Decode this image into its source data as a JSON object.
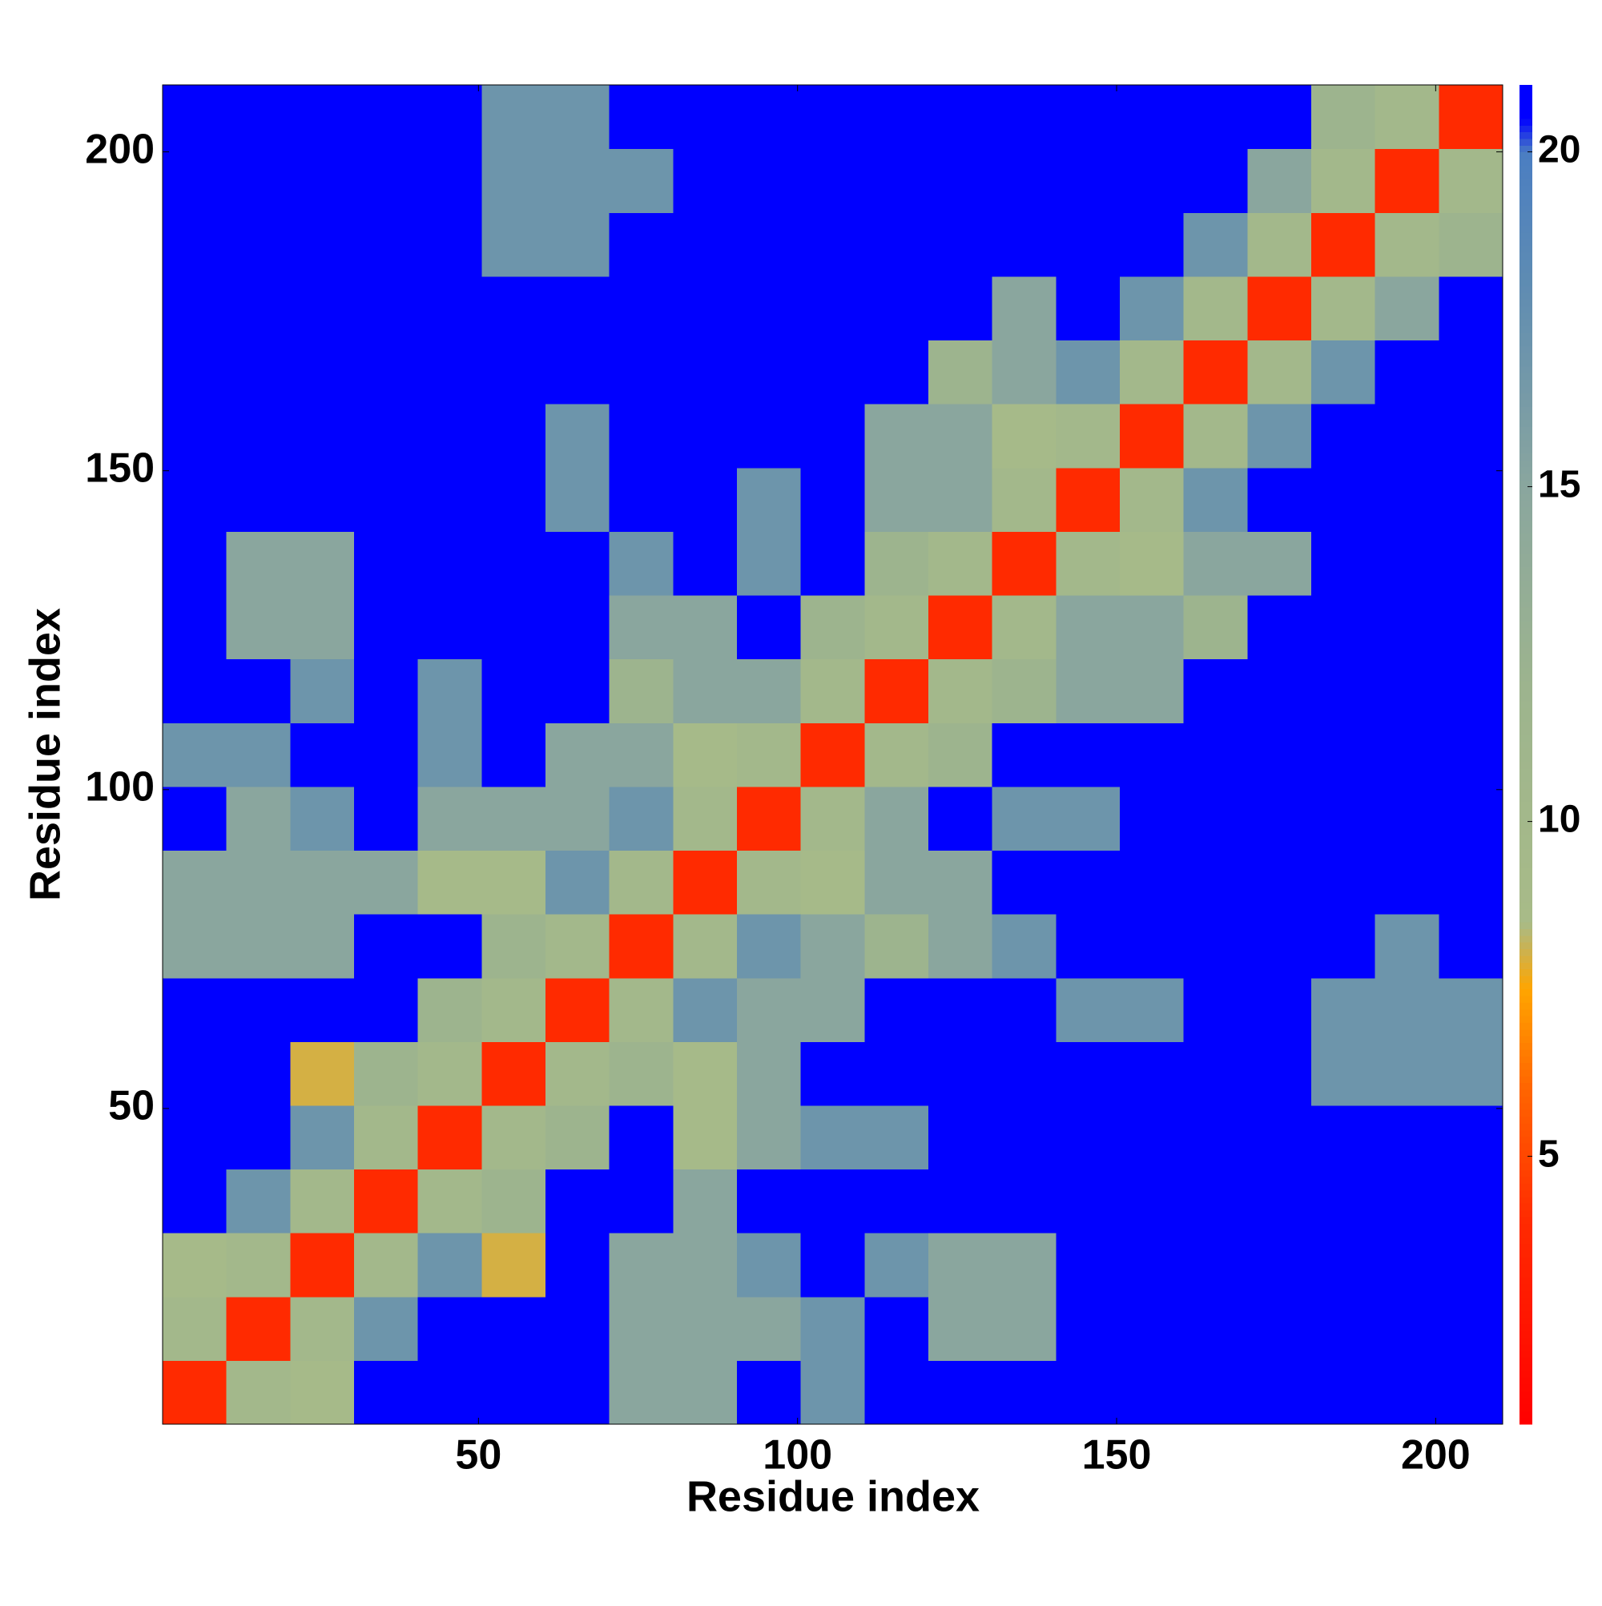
{
  "chart_data": {
    "type": "heatmap",
    "xlabel": "Residue index",
    "ylabel": "Residue index",
    "x": [
      5.5,
      15.5,
      25.5,
      35.5,
      45.5,
      55.5,
      65.5,
      75.5,
      85.5,
      95.5,
      105.5,
      115.5,
      125.5,
      135.5,
      145.5,
      155.5,
      165.5,
      175.5,
      185.5,
      195.5,
      205.5
    ],
    "y": [
      5.5,
      15.5,
      25.5,
      35.5,
      45.5,
      55.5,
      65.5,
      75.5,
      85.5,
      95.5,
      105.5,
      115.5,
      125.5,
      135.5,
      145.5,
      155.5,
      165.5,
      175.5,
      185.5,
      195.5,
      205.5
    ],
    "values": [
      [
        4,
        10,
        9,
        21,
        21,
        21,
        21,
        15,
        15,
        21,
        17,
        21,
        21,
        21,
        21,
        21,
        21,
        21,
        21,
        21,
        21
      ],
      [
        10,
        4,
        10,
        17,
        21,
        21,
        21,
        15,
        15,
        15,
        17,
        21,
        15,
        15,
        21,
        21,
        21,
        21,
        21,
        21,
        21
      ],
      [
        9,
        10,
        4,
        10,
        17,
        8,
        21,
        15,
        15,
        17,
        21,
        17,
        15,
        15,
        21,
        21,
        21,
        21,
        21,
        21,
        21
      ],
      [
        21,
        17,
        10,
        4,
        10,
        12,
        21,
        21,
        15,
        21,
        21,
        21,
        21,
        21,
        21,
        21,
        21,
        21,
        21,
        21,
        21
      ],
      [
        21,
        21,
        17,
        10,
        4,
        10,
        12,
        21,
        9,
        15,
        17,
        17,
        21,
        21,
        21,
        21,
        21,
        21,
        21,
        21,
        21
      ],
      [
        21,
        21,
        8,
        12,
        10,
        4,
        10,
        12,
        9,
        15,
        21,
        21,
        21,
        21,
        21,
        21,
        21,
        21,
        17,
        17,
        17
      ],
      [
        21,
        21,
        21,
        21,
        12,
        10,
        4,
        10,
        17,
        15,
        15,
        21,
        21,
        21,
        17,
        17,
        21,
        21,
        17,
        17,
        17
      ],
      [
        15,
        15,
        15,
        21,
        21,
        12,
        10,
        4,
        10,
        17,
        15,
        12,
        15,
        17,
        21,
        21,
        21,
        21,
        21,
        17,
        21
      ],
      [
        15,
        15,
        15,
        15,
        9,
        9,
        17,
        10,
        4,
        10,
        9,
        15,
        15,
        21,
        21,
        21,
        21,
        21,
        21,
        21,
        21
      ],
      [
        21,
        15,
        17,
        21,
        15,
        15,
        15,
        17,
        10,
        4,
        10,
        15,
        21,
        17,
        17,
        21,
        21,
        21,
        21,
        21,
        21
      ],
      [
        17,
        17,
        21,
        21,
        17,
        21,
        15,
        15,
        9,
        10,
        4,
        10,
        12,
        21,
        21,
        21,
        21,
        21,
        21,
        21,
        21
      ],
      [
        21,
        21,
        17,
        21,
        17,
        21,
        21,
        12,
        15,
        15,
        10,
        4,
        10,
        12,
        15,
        15,
        21,
        21,
        21,
        21,
        21
      ],
      [
        21,
        15,
        15,
        21,
        21,
        21,
        21,
        15,
        15,
        21,
        12,
        10,
        4,
        10,
        15,
        15,
        12,
        21,
        21,
        21,
        21
      ],
      [
        21,
        15,
        15,
        21,
        21,
        21,
        21,
        17,
        21,
        17,
        21,
        12,
        10,
        4,
        10,
        9,
        15,
        15,
        21,
        21,
        21
      ],
      [
        21,
        21,
        21,
        21,
        21,
        21,
        17,
        21,
        21,
        17,
        21,
        15,
        15,
        10,
        4,
        10,
        17,
        21,
        21,
        21,
        21
      ],
      [
        21,
        21,
        21,
        21,
        21,
        21,
        17,
        21,
        21,
        21,
        21,
        15,
        15,
        9,
        10,
        4,
        10,
        17,
        21,
        21,
        21
      ],
      [
        21,
        21,
        21,
        21,
        21,
        21,
        21,
        21,
        21,
        21,
        21,
        21,
        12,
        15,
        17,
        10,
        4,
        10,
        17,
        21,
        21
      ],
      [
        21,
        21,
        21,
        21,
        21,
        21,
        21,
        21,
        21,
        21,
        21,
        21,
        21,
        15,
        21,
        17,
        10,
        4,
        10,
        15,
        21
      ],
      [
        21,
        21,
        21,
        21,
        21,
        17,
        17,
        21,
        21,
        21,
        21,
        21,
        21,
        21,
        21,
        21,
        17,
        10,
        4,
        10,
        12
      ],
      [
        21,
        21,
        21,
        21,
        21,
        17,
        17,
        17,
        21,
        21,
        21,
        21,
        21,
        21,
        21,
        21,
        21,
        15,
        10,
        4,
        10
      ],
      [
        21,
        21,
        21,
        21,
        21,
        17,
        17,
        21,
        21,
        21,
        21,
        21,
        21,
        21,
        21,
        21,
        21,
        21,
        12,
        10,
        4
      ]
    ],
    "xlim": [
      0.5,
      210.5
    ],
    "ylim": [
      0.5,
      210.5
    ],
    "xticks": [
      50,
      100,
      150,
      200
    ],
    "yticks": [
      50,
      100,
      150,
      200
    ],
    "zlim": [
      1,
      21
    ],
    "zticks": [
      5,
      10,
      15,
      20
    ],
    "colorscale": [
      {
        "value": 1,
        "color": "#ff0000"
      },
      {
        "value": 4,
        "color": "#ff2a00"
      },
      {
        "value": 6,
        "color": "#ff6400"
      },
      {
        "value": 7.5,
        "color": "#ffa500"
      },
      {
        "value": 8.5,
        "color": "#a8bb88"
      },
      {
        "value": 12,
        "color": "#9db48e"
      },
      {
        "value": 15,
        "color": "#8aa69e"
      },
      {
        "value": 18,
        "color": "#5f8cb2"
      },
      {
        "value": 20,
        "color": "#4a7ec2"
      },
      {
        "value": 20.5,
        "color": "#0000ff"
      },
      {
        "value": 21,
        "color": "#0000ff"
      }
    ]
  }
}
